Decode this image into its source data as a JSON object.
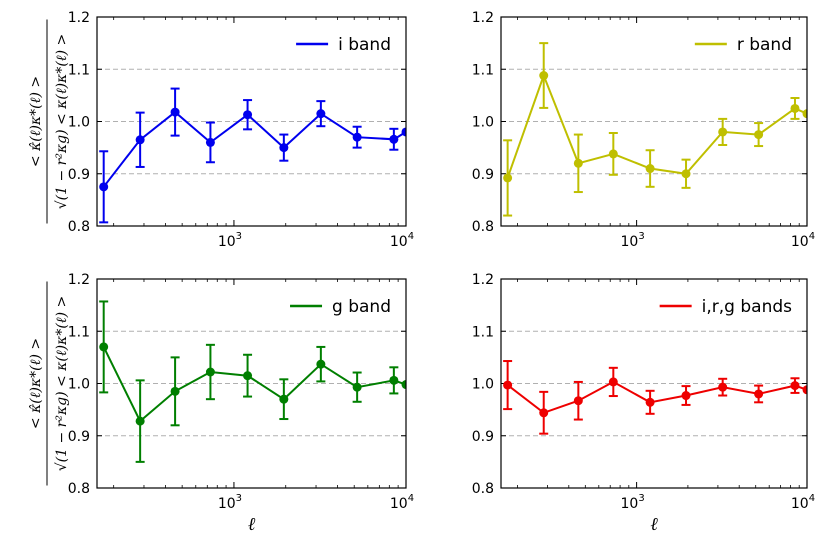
{
  "chart_data": [
    {
      "type": "line",
      "panel": "top-left",
      "xscale": "log",
      "xlim": [
        160,
        10000
      ],
      "ylim": [
        0.8,
        1.2
      ],
      "yticks": [
        "0.8",
        "0.9",
        "1.0",
        "1.1",
        "1.2"
      ],
      "xticks": [
        {
          "base": "10",
          "exp": "3",
          "value": 1000
        },
        {
          "base": "10",
          "exp": "4",
          "value": 10000
        }
      ],
      "ylabel_numerator": "< κ̂(ℓ)κ*(ℓ) >",
      "ylabel_denominator": "√(1 − r²κg) < κ(ℓ)κ*(ℓ) >",
      "xlabel": "",
      "color": "#0000ee",
      "legend": "top-right",
      "series": [
        {
          "name": "i band",
          "x": [
            175,
            285,
            455,
            730,
            1200,
            1950,
            3200,
            5200,
            8500,
            10000
          ],
          "y": [
            0.875,
            0.965,
            1.018,
            0.96,
            1.013,
            0.95,
            1.015,
            0.97,
            0.966,
            0.98
          ],
          "err": [
            0.068,
            0.052,
            0.045,
            0.038,
            0.028,
            0.025,
            0.024,
            0.02,
            0.02,
            null
          ]
        }
      ]
    },
    {
      "type": "line",
      "panel": "top-right",
      "xscale": "log",
      "xlim": [
        160,
        10000
      ],
      "ylim": [
        0.8,
        1.2
      ],
      "yticks": [
        "0.8",
        "0.9",
        "1.0",
        "1.1",
        "1.2"
      ],
      "xticks": [
        {
          "base": "10",
          "exp": "3",
          "value": 1000
        },
        {
          "base": "10",
          "exp": "4",
          "value": 10000
        }
      ],
      "xlabel": "",
      "color": "#bfbf00",
      "legend": "top-right",
      "series": [
        {
          "name": "r band",
          "x": [
            175,
            285,
            455,
            730,
            1200,
            1950,
            3200,
            5200,
            8500,
            10000
          ],
          "y": [
            0.892,
            1.088,
            0.92,
            0.938,
            0.91,
            0.9,
            0.98,
            0.975,
            1.025,
            1.015
          ],
          "err": [
            0.072,
            0.062,
            0.055,
            0.04,
            0.035,
            0.027,
            0.025,
            0.022,
            0.02,
            null
          ]
        }
      ]
    },
    {
      "type": "line",
      "panel": "bottom-left",
      "xscale": "log",
      "xlim": [
        160,
        10000
      ],
      "ylim": [
        0.8,
        1.2
      ],
      "yticks": [
        "0.8",
        "0.9",
        "1.0",
        "1.1",
        "1.2"
      ],
      "xticks": [
        {
          "base": "10",
          "exp": "3",
          "value": 1000
        },
        {
          "base": "10",
          "exp": "4",
          "value": 10000
        }
      ],
      "ylabel_numerator": "< κ̂(ℓ)κ*(ℓ) >",
      "ylabel_denominator": "√(1 − r²κg) < κ(ℓ)κ*(ℓ) >",
      "xlabel": "ℓ",
      "color": "#007f00",
      "legend": "top-right",
      "series": [
        {
          "name": "g band",
          "x": [
            175,
            285,
            455,
            730,
            1200,
            1950,
            3200,
            5200,
            8500,
            10000
          ],
          "y": [
            1.07,
            0.928,
            0.985,
            1.022,
            1.015,
            0.97,
            1.037,
            0.993,
            1.006,
            0.998
          ],
          "err": [
            0.087,
            0.078,
            0.065,
            0.052,
            0.04,
            0.038,
            0.033,
            0.028,
            0.025,
            null
          ]
        }
      ]
    },
    {
      "type": "line",
      "panel": "bottom-right",
      "xscale": "log",
      "xlim": [
        160,
        10000
      ],
      "ylim": [
        0.8,
        1.2
      ],
      "yticks": [
        "0.8",
        "0.9",
        "1.0",
        "1.1",
        "1.2"
      ],
      "xticks": [
        {
          "base": "10",
          "exp": "3",
          "value": 1000
        },
        {
          "base": "10",
          "exp": "4",
          "value": 10000
        }
      ],
      "xlabel": "ℓ",
      "color": "#ee0000",
      "legend": "top-right",
      "series": [
        {
          "name": "i,r,g bands",
          "x": [
            175,
            285,
            455,
            730,
            1200,
            1950,
            3200,
            5200,
            8500,
            10000
          ],
          "y": [
            0.997,
            0.944,
            0.967,
            1.003,
            0.964,
            0.977,
            0.993,
            0.98,
            0.996,
            0.988
          ],
          "err": [
            0.046,
            0.04,
            0.036,
            0.027,
            0.022,
            0.018,
            0.016,
            0.016,
            0.014,
            null
          ]
        }
      ]
    }
  ]
}
